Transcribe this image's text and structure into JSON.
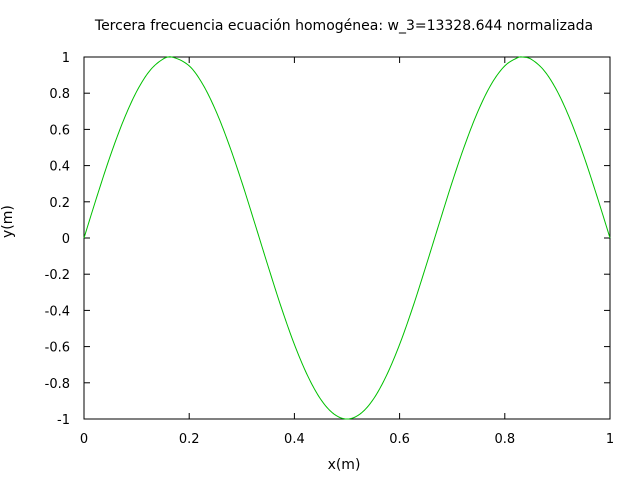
{
  "chart_data": {
    "type": "line",
    "title": "Tercera frecuencia ecuación homogénea: w_3=13328.644 normalizada",
    "xlabel": "x(m)",
    "ylabel": "y(m)",
    "xlim": [
      0,
      1
    ],
    "ylim": [
      -1,
      1
    ],
    "xticks": [
      0,
      0.2,
      0.4,
      0.6,
      0.8,
      1
    ],
    "xtick_labels": [
      "0",
      "0.2",
      "0.4",
      "0.6",
      "0.8",
      "1"
    ],
    "yticks": [
      -1,
      -0.8,
      -0.6,
      -0.4,
      -0.2,
      0,
      0.2,
      0.4,
      0.6,
      0.8,
      1
    ],
    "ytick_labels": [
      "-1",
      "-0.8",
      "-0.6",
      "-0.4",
      "-0.2",
      "0",
      "0.2",
      "0.4",
      "0.6",
      "0.8",
      "1"
    ],
    "grid": false,
    "series": [
      {
        "color": "#00c000",
        "x": [
          0,
          0.025,
          0.05,
          0.075,
          0.1,
          0.125,
          0.15,
          0.1667,
          0.2,
          0.225,
          0.25,
          0.275,
          0.3,
          0.325,
          0.35,
          0.375,
          0.4,
          0.425,
          0.45,
          0.475,
          0.5,
          0.525,
          0.55,
          0.575,
          0.6,
          0.625,
          0.65,
          0.675,
          0.7,
          0.725,
          0.75,
          0.775,
          0.8,
          0.825,
          0.8333,
          0.85,
          0.875,
          0.9,
          0.925,
          0.95,
          0.975,
          1
        ],
        "y": [
          0,
          0.233,
          0.454,
          0.649,
          0.809,
          0.924,
          0.988,
          1.0,
          0.951,
          0.853,
          0.707,
          0.522,
          0.309,
          0.078,
          -0.156,
          -0.383,
          -0.588,
          -0.76,
          -0.891,
          -0.972,
          -1.0,
          -0.972,
          -0.891,
          -0.76,
          -0.588,
          -0.383,
          -0.156,
          0.078,
          0.309,
          0.522,
          0.707,
          0.853,
          0.951,
          0.997,
          1.0,
          0.988,
          0.924,
          0.809,
          0.649,
          0.454,
          0.233,
          0
        ]
      }
    ]
  }
}
